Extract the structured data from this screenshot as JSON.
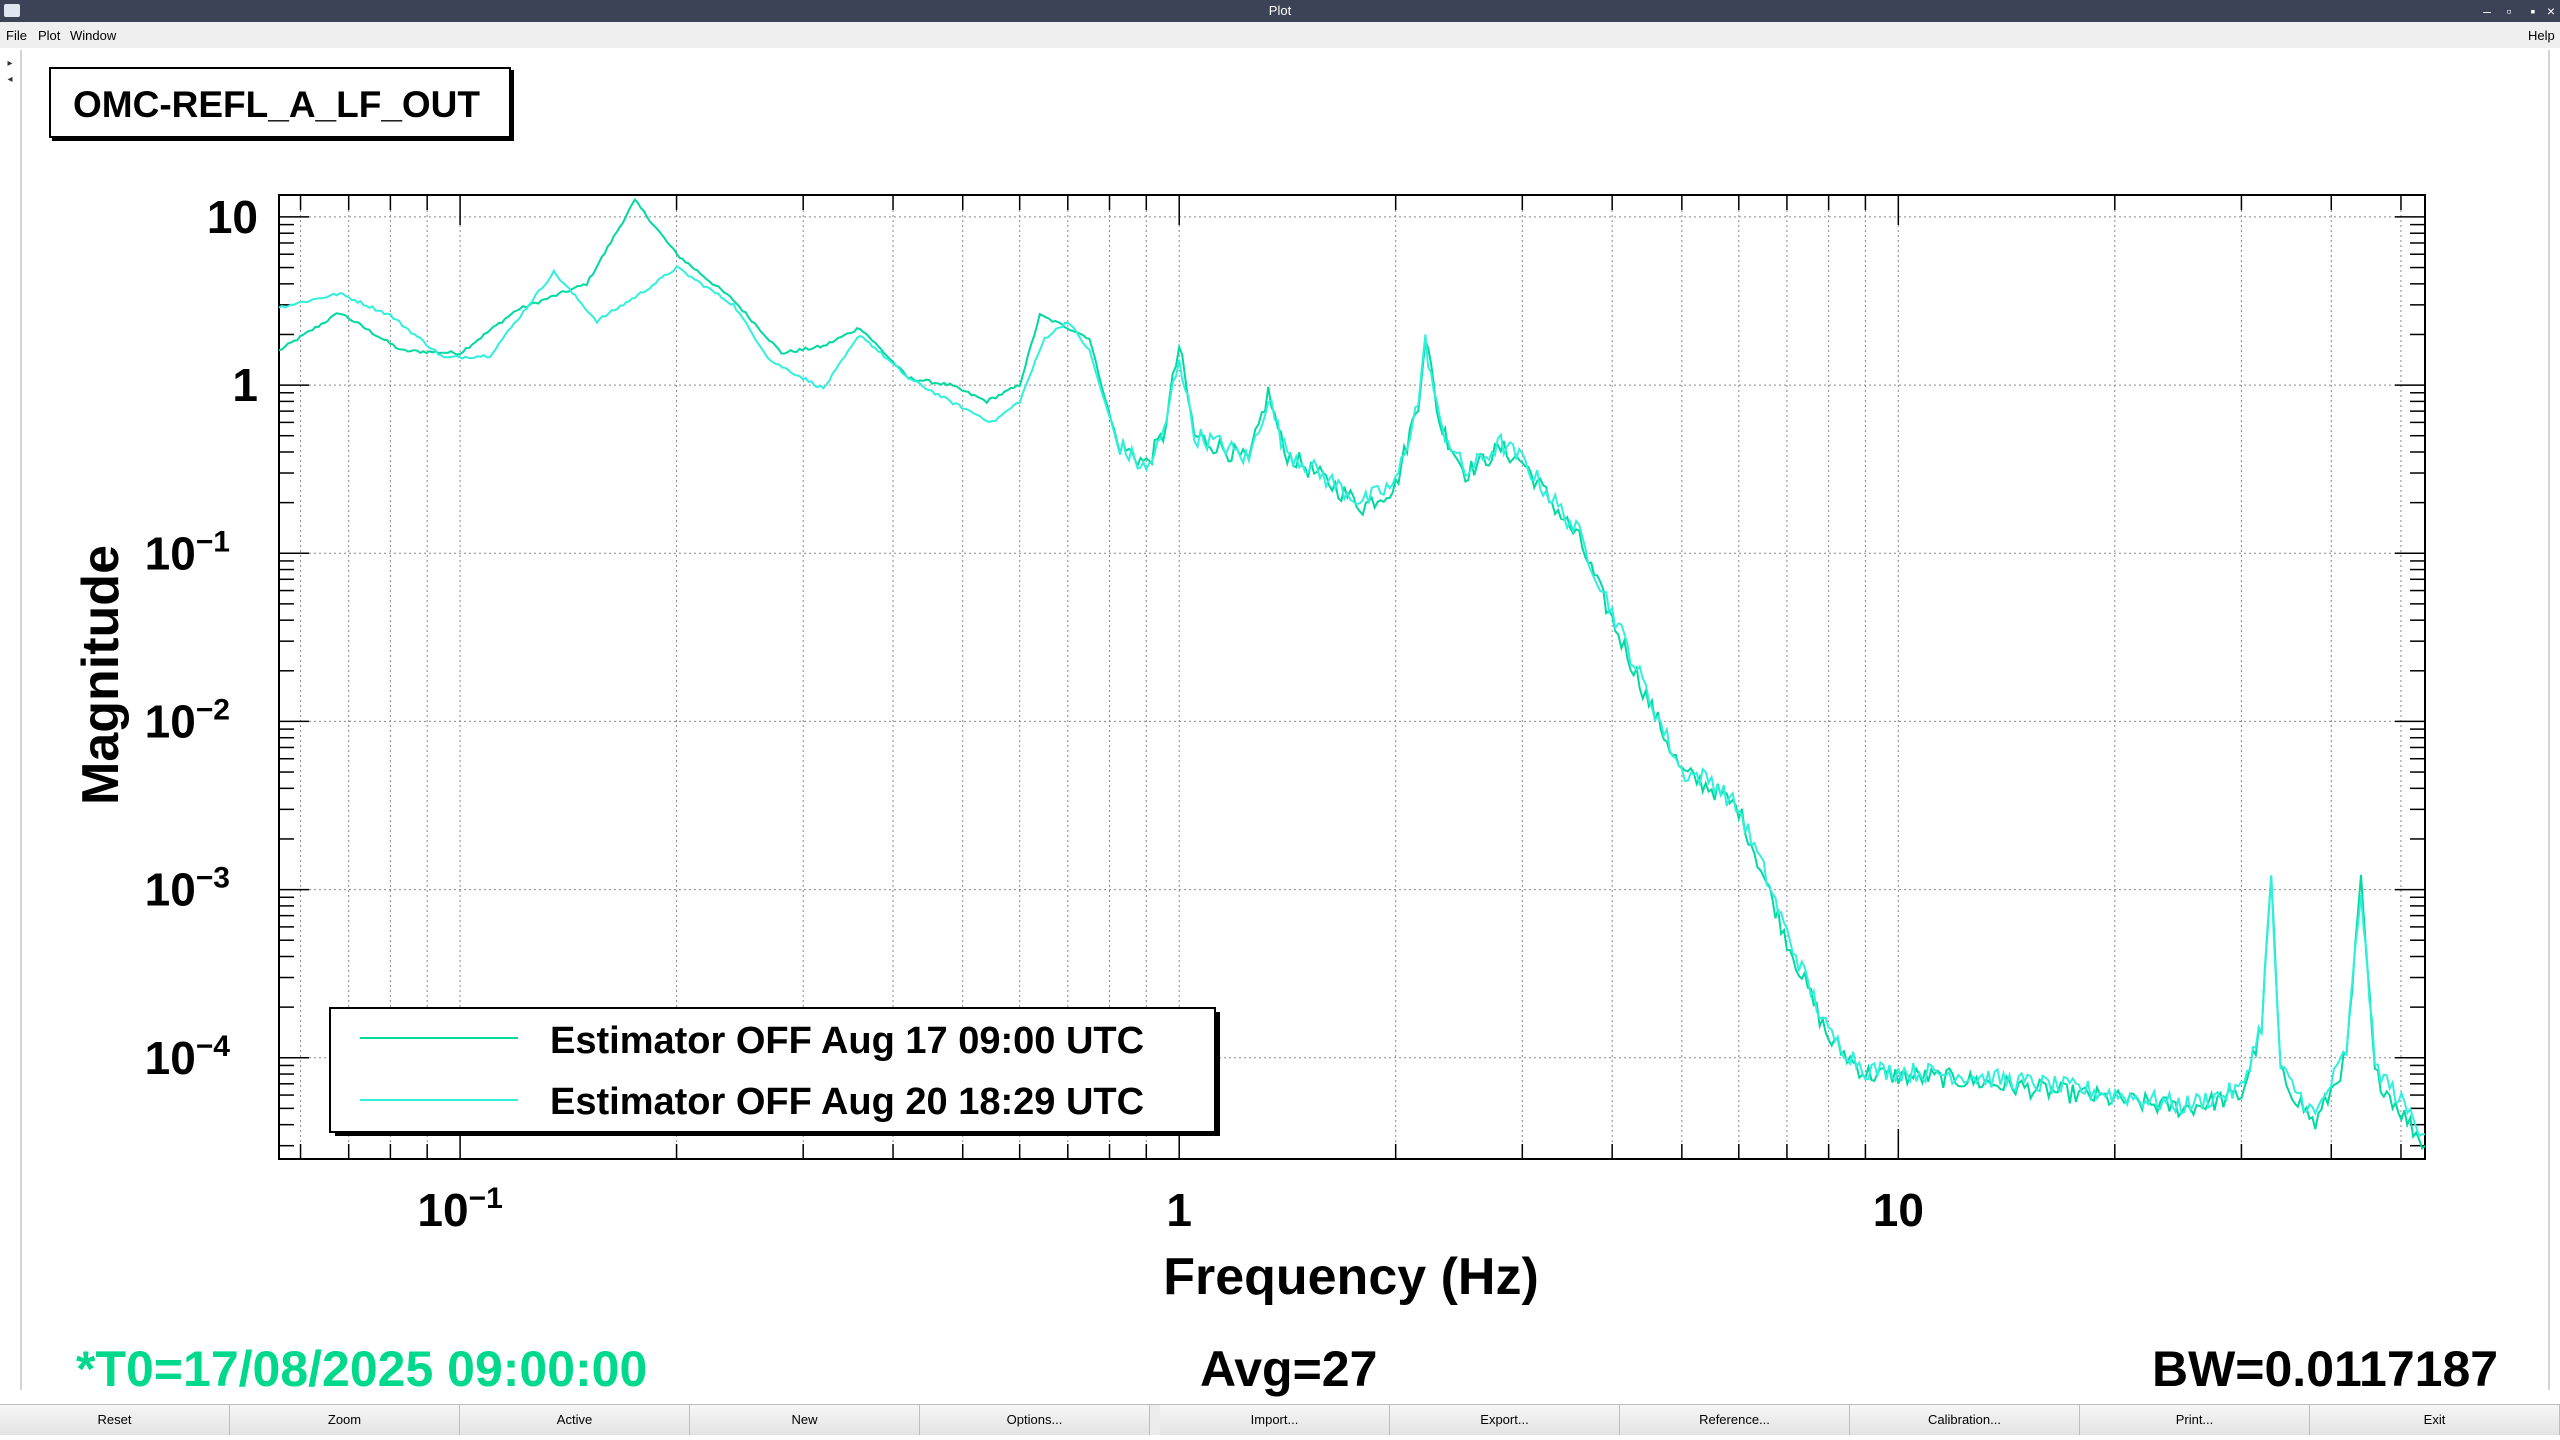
{
  "window": {
    "title": "Plot",
    "menu": [
      "File",
      "Plot",
      "Window"
    ],
    "help": "Help"
  },
  "plot": {
    "title_box": "OMC-REFL_A_LF_OUT",
    "status": {
      "t0": "*T0=17/08/2025 09:00:00",
      "avg": "Avg=27",
      "bw": "BW=0.0117187"
    }
  },
  "chart_data": {
    "type": "line",
    "xlabel": "Frequency (Hz)",
    "ylabel": "Magnitude",
    "xscale": "log",
    "yscale": "log",
    "xlim": [
      0.056,
      54
    ],
    "ylim": [
      2.5e-05,
      13.5
    ],
    "x_ticks": [
      {
        "value": 0.1,
        "base": "10",
        "exp": "−1"
      },
      {
        "value": 1,
        "base": "1",
        "exp": ""
      },
      {
        "value": 10,
        "base": "10",
        "exp": ""
      }
    ],
    "y_ticks": [
      {
        "value": 10,
        "base": "10",
        "exp": ""
      },
      {
        "value": 1,
        "base": "1",
        "exp": ""
      },
      {
        "value": 0.1,
        "base": "10",
        "exp": "−1"
      },
      {
        "value": 0.01,
        "base": "10",
        "exp": "−2"
      },
      {
        "value": 0.001,
        "base": "10",
        "exp": "−3"
      },
      {
        "value": 0.0001,
        "base": "10",
        "exp": "−4"
      }
    ],
    "grid": true,
    "legend_position": "bottom-left",
    "series": [
      {
        "name": "Estimator OFF Aug 17 09:00 UTC",
        "color": "#00d9a0",
        "points": [
          [
            0.056,
            1.6
          ],
          [
            0.068,
            2.7
          ],
          [
            0.083,
            1.6
          ],
          [
            0.1,
            1.55
          ],
          [
            0.12,
            2.8
          ],
          [
            0.15,
            4.0
          ],
          [
            0.175,
            12.5
          ],
          [
            0.2,
            6.0
          ],
          [
            0.24,
            3.2
          ],
          [
            0.28,
            1.55
          ],
          [
            0.32,
            1.7
          ],
          [
            0.36,
            2.2
          ],
          [
            0.42,
            1.1
          ],
          [
            0.48,
            1.0
          ],
          [
            0.54,
            0.8
          ],
          [
            0.6,
            1.0
          ],
          [
            0.64,
            2.6
          ],
          [
            0.7,
            2.2
          ],
          [
            0.75,
            1.9
          ],
          [
            0.82,
            0.45
          ],
          [
            0.9,
            0.34
          ],
          [
            0.95,
            0.5
          ],
          [
            1.0,
            1.7
          ],
          [
            1.05,
            0.5
          ],
          [
            1.15,
            0.42
          ],
          [
            1.25,
            0.35
          ],
          [
            1.33,
            0.9
          ],
          [
            1.4,
            0.4
          ],
          [
            1.6,
            0.27
          ],
          [
            1.8,
            0.19
          ],
          [
            2.0,
            0.25
          ],
          [
            2.15,
            0.8
          ],
          [
            2.2,
            2.0
          ],
          [
            2.3,
            0.6
          ],
          [
            2.5,
            0.3
          ],
          [
            2.8,
            0.42
          ],
          [
            3.0,
            0.35
          ],
          [
            3.3,
            0.2
          ],
          [
            3.6,
            0.12
          ],
          [
            4.0,
            0.04
          ],
          [
            4.5,
            0.013
          ],
          [
            5.0,
            0.005
          ],
          [
            5.5,
            0.004
          ],
          [
            6.0,
            0.003
          ],
          [
            6.5,
            0.0012
          ],
          [
            7.0,
            0.0005
          ],
          [
            8.0,
            0.00013
          ],
          [
            9.0,
            8e-05
          ],
          [
            12,
            7.5e-05
          ],
          [
            18,
            6e-05
          ],
          [
            25,
            5e-05
          ],
          [
            30,
            6e-05
          ],
          [
            32,
            0.00015
          ],
          [
            33,
            0.0012
          ],
          [
            34,
            8e-05
          ],
          [
            38,
            4e-05
          ],
          [
            42,
            0.0001
          ],
          [
            44,
            0.0011
          ],
          [
            46,
            8e-05
          ],
          [
            54,
            3e-05
          ]
        ]
      },
      {
        "name": "Estimator OFF Aug 20 18:29 UTC",
        "color": "#30f0dc",
        "points": [
          [
            0.056,
            2.9
          ],
          [
            0.068,
            3.5
          ],
          [
            0.08,
            2.6
          ],
          [
            0.095,
            1.45
          ],
          [
            0.11,
            1.5
          ],
          [
            0.135,
            4.7
          ],
          [
            0.155,
            2.4
          ],
          [
            0.18,
            3.6
          ],
          [
            0.2,
            5.0
          ],
          [
            0.24,
            3.0
          ],
          [
            0.27,
            1.4
          ],
          [
            0.32,
            0.95
          ],
          [
            0.36,
            2.0
          ],
          [
            0.42,
            1.1
          ],
          [
            0.48,
            0.8
          ],
          [
            0.55,
            0.6
          ],
          [
            0.6,
            0.8
          ],
          [
            0.65,
            1.9
          ],
          [
            0.7,
            2.4
          ],
          [
            0.75,
            1.6
          ],
          [
            0.82,
            0.45
          ],
          [
            0.9,
            0.31
          ],
          [
            0.95,
            0.5
          ],
          [
            1.0,
            1.5
          ],
          [
            1.05,
            0.5
          ],
          [
            1.15,
            0.44
          ],
          [
            1.25,
            0.36
          ],
          [
            1.33,
            0.85
          ],
          [
            1.4,
            0.42
          ],
          [
            1.6,
            0.28
          ],
          [
            1.8,
            0.2
          ],
          [
            2.0,
            0.26
          ],
          [
            2.15,
            0.8
          ],
          [
            2.2,
            1.8
          ],
          [
            2.3,
            0.6
          ],
          [
            2.5,
            0.3
          ],
          [
            2.8,
            0.45
          ],
          [
            3.0,
            0.36
          ],
          [
            3.3,
            0.21
          ],
          [
            3.6,
            0.13
          ],
          [
            4.0,
            0.045
          ],
          [
            4.5,
            0.014
          ],
          [
            5.0,
            0.005
          ],
          [
            5.5,
            0.0045
          ],
          [
            6.0,
            0.003
          ],
          [
            6.5,
            0.0013
          ],
          [
            7.0,
            0.00055
          ],
          [
            8.0,
            0.00014
          ],
          [
            9.0,
            8.5e-05
          ],
          [
            12,
            8e-05
          ],
          [
            18,
            6.5e-05
          ],
          [
            25,
            5.2e-05
          ],
          [
            30,
            6.5e-05
          ],
          [
            32,
            0.00016
          ],
          [
            33,
            0.0011
          ],
          [
            34,
            8.5e-05
          ],
          [
            38,
            4.5e-05
          ],
          [
            42,
            0.00011
          ],
          [
            44,
            0.001
          ],
          [
            46,
            9e-05
          ],
          [
            54,
            3.5e-05
          ]
        ]
      }
    ]
  },
  "buttons": [
    "Reset",
    "Zoom",
    "Active",
    "New",
    "Options...",
    "Import...",
    "Export...",
    "Reference...",
    "Calibration...",
    "Print...",
    "Exit"
  ],
  "colors": {
    "t0": "#00d98c",
    "axes": "#000000",
    "grid": "#888888"
  }
}
